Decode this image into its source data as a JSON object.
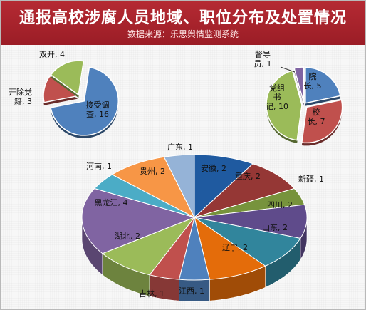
{
  "header": {
    "title": "通报高校涉腐人员地域、职位分布及处置情况",
    "subtitle": "数据来源：乐思舆情监测系统"
  },
  "chart_data": [
    {
      "type": "pie",
      "categories": [
        "接受调查",
        "开除党籍",
        "双开"
      ],
      "values": [
        16,
        3,
        4
      ],
      "data_labels": [
        [
          "接受调",
          "查, 16"
        ],
        [
          "开除党",
          "籍, 3"
        ],
        [
          "双开, 4"
        ]
      ],
      "colors": [
        "#4f81bd",
        "#c0504d",
        "#9bbb59"
      ]
    },
    {
      "type": "pie",
      "categories": [
        "院长",
        "校长",
        "党组书记",
        "督导员"
      ],
      "values": [
        5,
        7,
        10,
        1
      ],
      "data_labels": [
        [
          "院",
          "长, 5"
        ],
        [
          "校",
          "长, 7"
        ],
        [
          "党组",
          "书",
          "记, 10"
        ],
        [
          "督导",
          "员, 1"
        ]
      ],
      "colors": [
        "#4f81bd",
        "#c0504d",
        "#9bbb59",
        "#8064a2"
      ]
    },
    {
      "type": "pie",
      "categories": [
        "安徽",
        "重庆",
        "新疆",
        "四川",
        "山东",
        "辽宁",
        "江西",
        "吉林",
        "湖北",
        "黑龙江",
        "河南",
        "贵州",
        "广东"
      ],
      "values": [
        2,
        2,
        1,
        2,
        2,
        2,
        1,
        1,
        2,
        4,
        1,
        2,
        1
      ],
      "data_labels": [
        [
          "安徽, 2"
        ],
        [
          "重庆, 2"
        ],
        [
          "新疆, 1"
        ],
        [
          "四川, 2"
        ],
        [
          "山东, 2"
        ],
        [
          "辽宁, 2"
        ],
        [
          "江西, 1"
        ],
        [
          "吉林, 1"
        ],
        [
          "湖北, 2"
        ],
        [
          "黑龙江, 4"
        ],
        [
          "河南, 1"
        ],
        [
          "贵州, 2"
        ],
        [
          "广东, 1"
        ]
      ],
      "colors": [
        "#1f5aa0",
        "#953735",
        "#77933c",
        "#5f4b8b",
        "#31859c",
        "#e46c0a",
        "#4f81bd",
        "#c0504d",
        "#9bbb59",
        "#8064a2",
        "#4bacc6",
        "#f79646",
        "#95b3d7"
      ]
    }
  ]
}
